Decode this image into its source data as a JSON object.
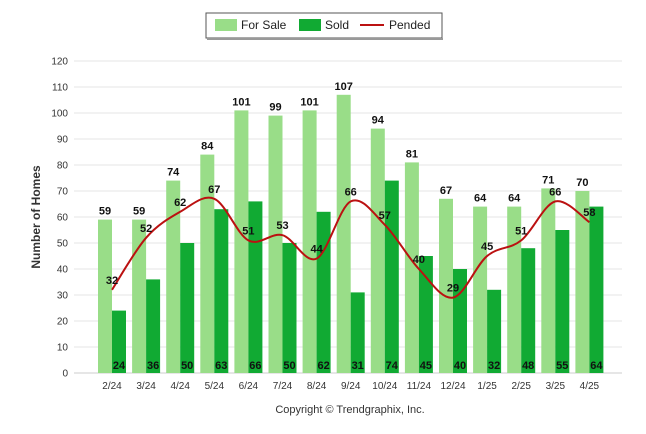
{
  "chart_data": {
    "type": "bar",
    "categories": [
      "2/24",
      "3/24",
      "4/24",
      "5/24",
      "6/24",
      "7/24",
      "8/24",
      "9/24",
      "10/24",
      "11/24",
      "12/24",
      "1/25",
      "2/25",
      "3/25",
      "4/25"
    ],
    "series": [
      {
        "name": "For Sale",
        "type": "bar",
        "color": "#99dd88",
        "values": [
          59,
          59,
          74,
          84,
          101,
          99,
          101,
          107,
          94,
          81,
          67,
          64,
          64,
          71,
          70
        ]
      },
      {
        "name": "Sold",
        "type": "bar",
        "color": "#11aa33",
        "values": [
          24,
          36,
          50,
          63,
          66,
          50,
          62,
          31,
          74,
          45,
          40,
          32,
          48,
          55,
          64
        ]
      },
      {
        "name": "Pended",
        "type": "line",
        "color": "#bb1111",
        "values": [
          32,
          52,
          62,
          67,
          51,
          53,
          44,
          66,
          57,
          40,
          29,
          45,
          51,
          66,
          58
        ]
      }
    ],
    "title": "",
    "xlabel": "",
    "ylabel": "Number of Homes",
    "ylim": [
      0,
      120
    ],
    "yticks": [
      0,
      10,
      20,
      30,
      40,
      50,
      60,
      70,
      80,
      90,
      100,
      110,
      120
    ],
    "grid": true,
    "legend": "top-center"
  },
  "footer": {
    "copyright": "Copyright © Trendgraphix, Inc."
  }
}
